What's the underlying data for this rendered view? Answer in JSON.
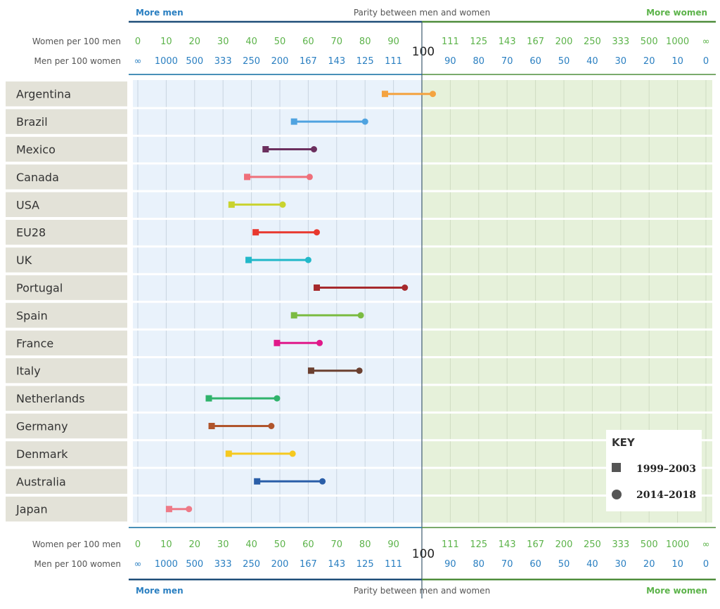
{
  "header": {
    "left_label": "More men",
    "center_label": "Parity between men and women",
    "right_label": "More women",
    "women_row_label": "Women per 100 men",
    "men_row_label": "Men per 100 women",
    "parity_label": "100"
  },
  "colors": {
    "men_side_bg": "#e9f2fb",
    "women_side_bg": "#e6f1da",
    "label_bg": "#e3e2d8",
    "blue_text": "#2a7fc1",
    "green_text": "#5cb34a",
    "men_rule": "#1f4e79",
    "women_rule": "#4f8d3c"
  },
  "ticks_left": {
    "women": [
      "0",
      "10",
      "20",
      "30",
      "40",
      "50",
      "60",
      "70",
      "80",
      "90"
    ],
    "men": [
      "∞",
      "1000",
      "500",
      "333",
      "250",
      "200",
      "167",
      "143",
      "125",
      "111"
    ]
  },
  "ticks_right": {
    "women": [
      "111",
      "125",
      "143",
      "167",
      "200",
      "250",
      "333",
      "500",
      "1000",
      "∞"
    ],
    "men": [
      "90",
      "80",
      "70",
      "60",
      "50",
      "40",
      "30",
      "20",
      "10",
      "0"
    ]
  },
  "key": {
    "title": "KEY",
    "item1": "1999–2003",
    "item2": "2014–2018"
  },
  "chart_data": {
    "type": "dumbbell",
    "x_label": "Women per 100 men",
    "xlim_left_linear": [
      0,
      100
    ],
    "series": [
      {
        "name": "1999–2003",
        "marker": "square"
      },
      {
        "name": "2014–2018",
        "marker": "circle"
      }
    ],
    "categories": [
      "Argentina",
      "Brazil",
      "Mexico",
      "Canada",
      "USA",
      "EU28",
      "UK",
      "Portugal",
      "Spain",
      "France",
      "Italy",
      "Netherlands",
      "Germany",
      "Denmark",
      "Australia",
      "Japan"
    ],
    "rows": [
      {
        "country": "Argentina",
        "start": 87,
        "end": 104,
        "color": "#f4a340"
      },
      {
        "country": "Brazil",
        "start": 55,
        "end": 80,
        "color": "#4fa3e0"
      },
      {
        "country": "Mexico",
        "start": 45,
        "end": 62,
        "color": "#6b2f5e"
      },
      {
        "country": "Canada",
        "start": 38.5,
        "end": 60.5,
        "color": "#ef6f7a"
      },
      {
        "country": "USA",
        "start": 33,
        "end": 51,
        "color": "#c9d32e"
      },
      {
        "country": "EU28",
        "start": 41.5,
        "end": 63,
        "color": "#e8382e"
      },
      {
        "country": "UK",
        "start": 39,
        "end": 60,
        "color": "#22b8c9"
      },
      {
        "country": "Portugal",
        "start": 63,
        "end": 94,
        "color": "#a62a2d"
      },
      {
        "country": "Spain",
        "start": 55,
        "end": 78.5,
        "color": "#7bbb42"
      },
      {
        "country": "France",
        "start": 49,
        "end": 64,
        "color": "#e0198a"
      },
      {
        "country": "Italy",
        "start": 61,
        "end": 78,
        "color": "#6b4030"
      },
      {
        "country": "Netherlands",
        "start": 25,
        "end": 49,
        "color": "#2fb36b"
      },
      {
        "country": "Germany",
        "start": 26,
        "end": 47,
        "color": "#b0552c"
      },
      {
        "country": "Denmark",
        "start": 32,
        "end": 54.5,
        "color": "#f6c91f"
      },
      {
        "country": "Australia",
        "start": 42,
        "end": 65,
        "color": "#2a5ea8"
      },
      {
        "country": "Japan",
        "start": 11,
        "end": 18,
        "color": "#ee7a87"
      }
    ]
  }
}
